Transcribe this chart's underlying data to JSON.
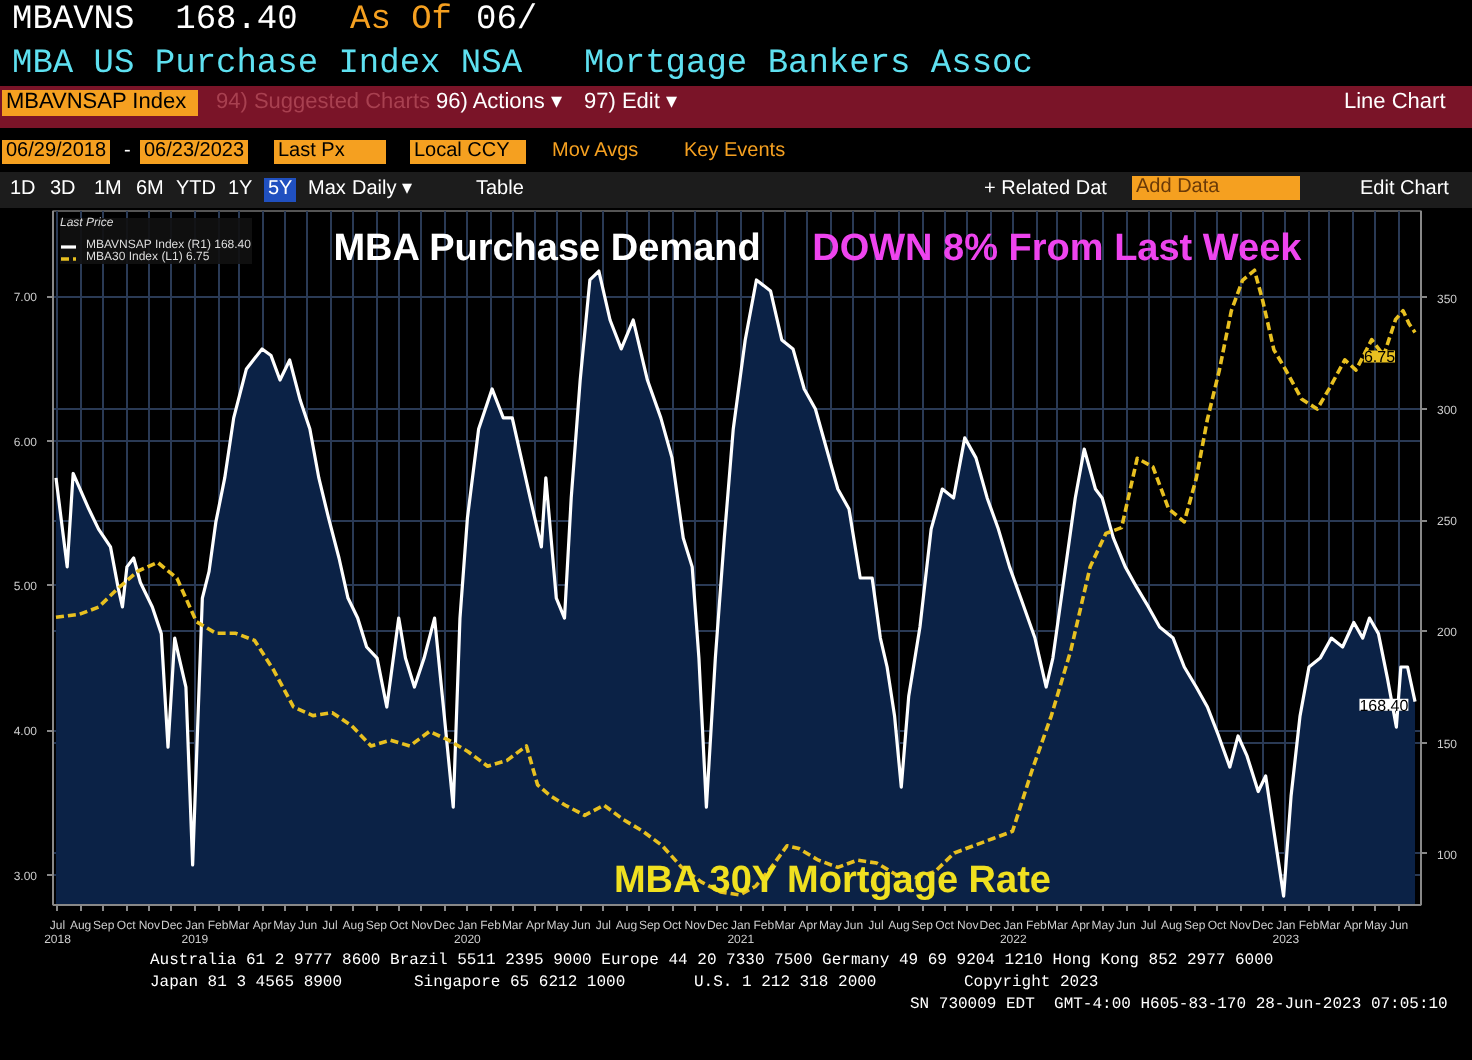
{
  "chart_data": {
    "type": "line",
    "title": "MBA Purchase Demand",
    "annotations": [
      "MBAVNS  168.40",
      "As Of",
      "06/",
      "MBA US Purchase Index NSA",
      "Mortgage Bankers Assoc",
      "MBAVNSAP Index",
      "94) Suggested Charts",
      "96) Actions ▾",
      "97) Edit ▾",
      "Line Chart",
      "06/29/2018",
      "-",
      "06/23/2023",
      "Last Px",
      "Local CCY",
      "Mov Avgs",
      "Key Events",
      "1D",
      "3D",
      "1M",
      "6M",
      "YTD",
      "1Y",
      "5Y",
      "Max",
      "Daily ▾",
      "Table",
      "+ Related Dat",
      "Add Data",
      "Edit Chart",
      "DOWN 8% From Last Week",
      "MBA 30Y Mortgage Rate",
      {
        "text": "6.75",
        "x": "2023-06-23",
        "y": 6.75
      },
      "168.40",
      "Australia 61 2 9777 8600 Brazil 5511 2395 9000 Europe 44 20 7330 7500 Germany 49 69 9204 1210 Hong Kong 852 2977 6000",
      "Japan 81 3 4565 8900",
      "Singapore 65 6212 1000",
      "U.S. 1 212 318 2000",
      "Copyright 2023",
      "SN 730009 EDT  GMT-4:00 H605-83-170 28-Jun-2023 07:05:10"
    ],
    "legend_title": "Last Price",
    "legend": "top left",
    "grid": true,
    "xlim": [
      "2018-06-25",
      "2023-07-01"
    ],
    "xticks": [
      {
        "value": "2018-07",
        "label": "Jul\n2018"
      },
      {
        "value": "2018-08",
        "label": "Aug"
      },
      {
        "value": "2018-09",
        "label": "Sep"
      },
      {
        "value": "2018-10",
        "label": "Oct"
      },
      {
        "value": "2018-11",
        "label": "Nov"
      },
      {
        "value": "2018-12",
        "label": "Dec"
      },
      {
        "value": "2019-01",
        "label": "Jan\n2019"
      },
      {
        "value": "2019-02",
        "label": "Feb"
      },
      {
        "value": "2019-03",
        "label": "Mar"
      },
      {
        "value": "2019-04",
        "label": "Apr"
      },
      {
        "value": "2019-05",
        "label": "May"
      },
      {
        "value": "2019-06",
        "label": "Jun"
      },
      {
        "value": "2019-07",
        "label": "Jul"
      },
      {
        "value": "2019-08",
        "label": "Aug"
      },
      {
        "value": "2019-09",
        "label": "Sep"
      },
      {
        "value": "2019-10",
        "label": "Oct"
      },
      {
        "value": "2019-11",
        "label": "Nov"
      },
      {
        "value": "2019-12",
        "label": "Dec"
      },
      {
        "value": "2020-01",
        "label": "Jan\n2020"
      },
      {
        "value": "2020-02",
        "label": "Feb"
      },
      {
        "value": "2020-03",
        "label": "Mar"
      },
      {
        "value": "2020-04",
        "label": "Apr"
      },
      {
        "value": "2020-05",
        "label": "May"
      },
      {
        "value": "2020-06",
        "label": "Jun"
      },
      {
        "value": "2020-07",
        "label": "Jul"
      },
      {
        "value": "2020-08",
        "label": "Aug"
      },
      {
        "value": "2020-09",
        "label": "Sep"
      },
      {
        "value": "2020-10",
        "label": "Oct"
      },
      {
        "value": "2020-11",
        "label": "Nov"
      },
      {
        "value": "2020-12",
        "label": "Dec"
      },
      {
        "value": "2021-01",
        "label": "Jan\n2021"
      },
      {
        "value": "2021-02",
        "label": "Feb"
      },
      {
        "value": "2021-03",
        "label": "Mar"
      },
      {
        "value": "2021-04",
        "label": "Apr"
      },
      {
        "value": "2021-05",
        "label": "May"
      },
      {
        "value": "2021-06",
        "label": "Jun"
      },
      {
        "value": "2021-07",
        "label": "Jul"
      },
      {
        "value": "2021-08",
        "label": "Aug"
      },
      {
        "value": "2021-09",
        "label": "Sep"
      },
      {
        "value": "2021-10",
        "label": "Oct"
      },
      {
        "value": "2021-11",
        "label": "Nov"
      },
      {
        "value": "2021-12",
        "label": "Dec"
      },
      {
        "value": "2022-01",
        "label": "Jan\n2022"
      },
      {
        "value": "2022-02",
        "label": "Feb"
      },
      {
        "value": "2022-03",
        "label": "Mar"
      },
      {
        "value": "2022-04",
        "label": "Apr"
      },
      {
        "value": "2022-05",
        "label": "May"
      },
      {
        "value": "2022-06",
        "label": "Jun"
      },
      {
        "value": "2022-07",
        "label": "Jul"
      },
      {
        "value": "2022-08",
        "label": "Aug"
      },
      {
        "value": "2022-09",
        "label": "Sep"
      },
      {
        "value": "2022-10",
        "label": "Oct"
      },
      {
        "value": "2022-11",
        "label": "Nov"
      },
      {
        "value": "2022-12",
        "label": "Dec"
      },
      {
        "value": "2023-01",
        "label": "Jan\n2023"
      },
      {
        "value": "2023-02",
        "label": "Feb"
      },
      {
        "value": "2023-03",
        "label": "Mar"
      },
      {
        "value": "2023-04",
        "label": "Apr"
      },
      {
        "value": "2023-05",
        "label": "May"
      },
      {
        "value": "2023-06",
        "label": "Jun"
      }
    ],
    "ylim": [
      2.79,
      7.59
    ],
    "yticks": [
      {
        "value": 3,
        "label": "3.00"
      },
      {
        "value": 4,
        "label": "4.00"
      },
      {
        "value": 5,
        "label": "5.00"
      },
      {
        "value": 6,
        "label": "6.00"
      },
      {
        "value": 7,
        "label": "7.00"
      }
    ],
    "y2lim": [
      77,
      389
    ],
    "y2ticks": [
      100,
      150,
      200,
      250,
      300,
      350
    ],
    "series": [
      {
        "name": "MBAVNSAP Index (R1) 168.40",
        "type": "area",
        "axis": "y2",
        "color": "#ffffff",
        "x": [
          "2018-06-29",
          "2018-07-14",
          "2018-07-22",
          "2018-08-12",
          "2018-08-25",
          "2018-09-10",
          "2018-09-20",
          "2018-09-26",
          "2018-10-02",
          "2018-10-11",
          "2018-10-20",
          "2018-11-05",
          "2018-11-17",
          "2018-11-26",
          "2018-12-05",
          "2018-12-11",
          "2018-12-20",
          "2018-12-29",
          "2019-01-11",
          "2019-01-20",
          "2019-01-29",
          "2019-02-10",
          "2019-02-22",
          "2019-03-11",
          "2019-04-01",
          "2019-04-13",
          "2019-04-25",
          "2019-05-08",
          "2019-05-22",
          "2019-06-04",
          "2019-06-16",
          "2019-06-29",
          "2019-07-13",
          "2019-07-25",
          "2019-08-07",
          "2019-08-19",
          "2019-09-02",
          "2019-09-15",
          "2019-10-01",
          "2019-10-10",
          "2019-10-22",
          "2019-11-04",
          "2019-11-18",
          "2019-12-01",
          "2019-12-13",
          "2019-12-22",
          "2020-01-01",
          "2020-01-16",
          "2020-02-03",
          "2020-02-18",
          "2020-03-01",
          "2020-03-13",
          "2020-03-25",
          "2020-04-09",
          "2020-04-15",
          "2020-04-29",
          "2020-05-10",
          "2020-05-19",
          "2020-05-31",
          "2020-06-13",
          "2020-06-25",
          "2020-07-10",
          "2020-07-25",
          "2020-08-10",
          "2020-08-29",
          "2020-09-16",
          "2020-10-01",
          "2020-10-16",
          "2020-10-28",
          "2020-11-06",
          "2020-11-16",
          "2020-11-28",
          "2020-12-10",
          "2020-12-22",
          "2021-01-07",
          "2021-01-22",
          "2021-02-10",
          "2021-02-25",
          "2021-03-12",
          "2021-03-27",
          "2021-04-11",
          "2021-04-26",
          "2021-05-11",
          "2021-05-26",
          "2021-06-10",
          "2021-06-26",
          "2021-07-07",
          "2021-07-16",
          "2021-07-26",
          "2021-08-04",
          "2021-08-14",
          "2021-08-29",
          "2021-09-13",
          "2021-09-28",
          "2021-10-13",
          "2021-10-28",
          "2021-11-12",
          "2021-11-27",
          "2021-12-12",
          "2021-12-27",
          "2022-01-11",
          "2022-01-30",
          "2022-02-14",
          "2022-02-23",
          "2022-03-10",
          "2022-03-25",
          "2022-04-06",
          "2022-04-21",
          "2022-04-30",
          "2022-05-15",
          "2022-05-31",
          "2022-06-15",
          "2022-07-01",
          "2022-07-16",
          "2022-08-03",
          "2022-08-18",
          "2022-09-03",
          "2022-09-18",
          "2022-10-03",
          "2022-10-18",
          "2022-10-29",
          "2022-11-10",
          "2022-11-25",
          "2022-12-05",
          "2022-12-17",
          "2022-12-29",
          "2023-01-08",
          "2023-01-20",
          "2023-02-01",
          "2023-02-16",
          "2023-03-03",
          "2023-03-18",
          "2023-04-02",
          "2023-04-14",
          "2023-04-23",
          "2023-05-05",
          "2023-05-17",
          "2023-05-29",
          "2023-06-04",
          "2023-06-13",
          "2023-06-23"
        ],
        "values": [
          269,
          229,
          271,
          255,
          246,
          238,
          220,
          211,
          229,
          233,
          222,
          211,
          199,
          148,
          197,
          188,
          175,
          95,
          215,
          227,
          249,
          269,
          296,
          318,
          327,
          324,
          313,
          322,
          304,
          291,
          269,
          251,
          233,
          215,
          206,
          193,
          188,
          166,
          206,
          188,
          175,
          188,
          206,
          162,
          121,
          206,
          251,
          291,
          309,
          296,
          296,
          278,
          260,
          238,
          269,
          215,
          206,
          260,
          313,
          358,
          362,
          340,
          327,
          340,
          313,
          296,
          278,
          242,
          229,
          188,
          121,
          188,
          242,
          291,
          331,
          358,
          353,
          331,
          327,
          309,
          300,
          282,
          264,
          255,
          224,
          224,
          197,
          184,
          162,
          130,
          171,
          202,
          246,
          264,
          260,
          287,
          278,
          260,
          246,
          229,
          215,
          197,
          175,
          188,
          224,
          260,
          282,
          264,
          260,
          242,
          229,
          220,
          211,
          202,
          197,
          184,
          175,
          166,
          153,
          139,
          153,
          144,
          128,
          135,
          108,
          81,
          126,
          162,
          184,
          188,
          197,
          193,
          204,
          197,
          206,
          199,
          179,
          157,
          184,
          184,
          168.4
        ]
      },
      {
        "name": "MBA30 Index (L1) 6.75",
        "color": "#e8c020",
        "line_style": "dashed",
        "x": [
          "2018-06-29",
          "2018-07-30",
          "2018-08-25",
          "2018-09-20",
          "2018-10-17",
          "2018-11-12",
          "2018-12-08",
          "2019-01-03",
          "2019-01-29",
          "2019-02-24",
          "2019-03-22",
          "2019-04-17",
          "2019-05-13",
          "2019-06-08",
          "2019-07-04",
          "2019-07-30",
          "2019-08-25",
          "2019-09-20",
          "2019-10-16",
          "2019-11-11",
          "2019-12-07",
          "2020-01-02",
          "2020-01-28",
          "2020-02-23",
          "2020-03-20",
          "2020-04-04",
          "2020-04-20",
          "2020-05-11",
          "2020-06-06",
          "2020-07-02",
          "2020-07-28",
          "2020-08-23",
          "2020-09-18",
          "2020-10-14",
          "2020-11-09",
          "2020-12-05",
          "2020-12-31",
          "2021-01-21",
          "2021-02-11",
          "2021-03-04",
          "2021-03-20",
          "2021-04-15",
          "2021-05-11",
          "2021-06-06",
          "2021-07-02",
          "2021-07-28",
          "2021-08-23",
          "2021-09-18",
          "2021-10-14",
          "2021-11-09",
          "2021-12-05",
          "2021-12-31",
          "2022-01-26",
          "2022-02-21",
          "2022-03-19",
          "2022-04-14",
          "2022-05-05",
          "2022-05-26",
          "2022-06-16",
          "2022-07-07",
          "2022-07-28",
          "2022-08-18",
          "2022-09-03",
          "2022-09-18",
          "2022-10-04",
          "2022-10-20",
          "2022-11-04",
          "2022-11-20",
          "2022-12-01",
          "2022-12-16",
          "2023-01-01",
          "2023-01-22",
          "2023-02-12",
          "2023-02-28",
          "2023-03-21",
          "2023-04-05",
          "2023-04-26",
          "2023-05-12",
          "2023-05-28",
          "2023-06-07",
          "2023-06-15",
          "2023-06-23"
        ],
        "values": [
          4.78,
          4.8,
          4.85,
          4.98,
          5.1,
          5.16,
          5.05,
          4.75,
          4.67,
          4.67,
          4.62,
          4.41,
          4.16,
          4.1,
          4.12,
          4.03,
          3.89,
          3.93,
          3.89,
          3.99,
          3.93,
          3.85,
          3.75,
          3.79,
          3.89,
          3.62,
          3.55,
          3.48,
          3.41,
          3.48,
          3.38,
          3.3,
          3.2,
          3.05,
          2.95,
          2.88,
          2.86,
          2.92,
          3.05,
          3.2,
          3.18,
          3.1,
          3.05,
          3.1,
          3.08,
          3.0,
          2.98,
          3.02,
          3.15,
          3.2,
          3.25,
          3.3,
          3.72,
          4.1,
          4.55,
          5.13,
          5.36,
          5.4,
          5.88,
          5.82,
          5.53,
          5.44,
          5.74,
          6.15,
          6.49,
          6.9,
          7.11,
          7.18,
          6.97,
          6.63,
          6.49,
          6.29,
          6.22,
          6.36,
          6.56,
          6.49,
          6.7,
          6.59,
          6.84,
          6.9,
          6.81,
          6.75
        ]
      }
    ]
  }
}
